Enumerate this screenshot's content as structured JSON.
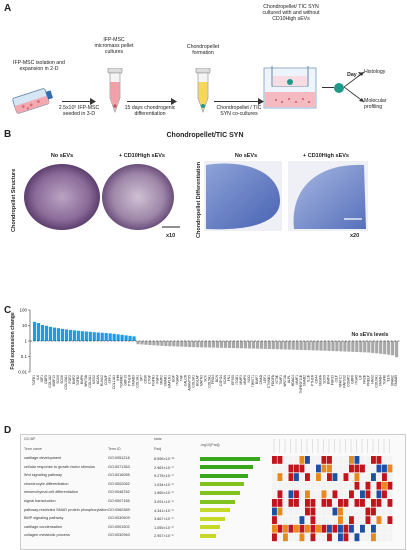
{
  "panels": {
    "a": "A",
    "b": "B",
    "c": "C",
    "d": "D"
  },
  "workflow": {
    "step1": "IFP-MSC isolation and expansion in 2-D",
    "step2_title": "IFP-MSC micromass pellet cultures",
    "step2_note": "2.5x10⁵ IFP-MSC seeded in 3-D",
    "step3_title": "Chondropellet formation",
    "step3_note": "15 days chondrogenic differentiation",
    "step4_title": "Chondropellet/ TIC SYN cultured with and without CD10High sEVs",
    "step4_note": "Chondropellet / TIC SYN co-cultures",
    "day": "Day 3",
    "out1": "Histology",
    "out2": "Molecular profiling"
  },
  "histology": {
    "title": "Chondropellet/TIC SYN",
    "left_label": "Chondropellet Structure",
    "right_label": "Chondropellet Differentiation",
    "col_no": "No sEVs",
    "col_plus": "+ CD10High  sEVs",
    "mag_left": "x10",
    "mag_right": "x20"
  },
  "chart_data": {
    "type": "bar",
    "ylabel": "Fold expression change",
    "yscale": "log",
    "ylim": [
      0.01,
      100
    ],
    "y_ticks": [
      "100",
      "10",
      "1",
      "0.1",
      "0.01"
    ],
    "reference_line": {
      "value": 1,
      "label": "No sEVs levels"
    },
    "colors": {
      "up": "#1e9be8",
      "down": "#a8a8a8"
    },
    "values": [
      17.2,
      14.5,
      10.8,
      9.6,
      8.2,
      7.3,
      6.7,
      6.1,
      5.6,
      5.2,
      4.9,
      4.6,
      4.3,
      4.1,
      3.9,
      3.7,
      3.55,
      3.4,
      3.25,
      3.1,
      2.9,
      2.7,
      2.5,
      2.3,
      2.15,
      2.0,
      0.62,
      0.6,
      0.57,
      0.55,
      0.53,
      0.51,
      0.49,
      0.47,
      0.46,
      0.45,
      0.44,
      0.43,
      0.42,
      0.41,
      0.4,
      0.395,
      0.39,
      0.385,
      0.38,
      0.375,
      0.37,
      0.365,
      0.36,
      0.355,
      0.35,
      0.345,
      0.34,
      0.335,
      0.33,
      0.325,
      0.32,
      0.315,
      0.31,
      0.305,
      0.3,
      0.295,
      0.29,
      0.285,
      0.28,
      0.275,
      0.27,
      0.265,
      0.26,
      0.255,
      0.25,
      0.245,
      0.24,
      0.235,
      0.23,
      0.225,
      0.22,
      0.215,
      0.21,
      0.205,
      0.2,
      0.195,
      0.19,
      0.185,
      0.18,
      0.17,
      0.16,
      0.15,
      0.14,
      0.13,
      0.12,
      0.09
    ],
    "n_up": 26,
    "tick_labels": [
      "TGFB1",
      "IL6",
      "IGF1",
      "GDF5",
      "COL1A2",
      "MMP13",
      "SOX9",
      "SOX6",
      "COL10A1",
      "FGF2",
      "BMP2",
      "TGFB2",
      "BMP6",
      "WNT5A",
      "COL2A1",
      "MSX2",
      "ACAN",
      "RUNX2",
      "COMP",
      "SPP1",
      "COL11A1",
      "IHH",
      "TGFBR2",
      "GDF10",
      "PTHLH",
      "SMAD3",
      "COL3A1",
      "SP7",
      "CD36",
      "CTGF",
      "FGFR1",
      "FGF4",
      "MMP2",
      "SMAD1",
      "HAPLN1",
      "EGF",
      "ITGAM",
      "TNF",
      "CALCR",
      "ADAMTS5",
      "COL9A1",
      "BGLAP",
      "MATN3",
      "SCX",
      "COL5A1",
      "PRG4",
      "DCN",
      "CSPG4",
      "VCAN",
      "FN1",
      "EP300",
      "ITGB1",
      "MMP3",
      "MMP9",
      "NOG",
      "TWIST1",
      "BMP7",
      "CHAD",
      "LEF1",
      "CTNNB1",
      "PDGFA",
      "NT5E",
      "TIMP1",
      "WNT3A",
      "ALPL",
      "HDAC4",
      "MMP1",
      "TNFRSF11B",
      "SMAD2",
      "IL1B",
      "PTH1R",
      "CD44",
      "VEGFA",
      "SOX5",
      "BMP4",
      "FGF23",
      "CILP",
      "NFATC1",
      "PAPSS2",
      "COMP2",
      "GDF6",
      "ITGA5",
      "LIF",
      "FRZB",
      "PRELP",
      "HAS2",
      "COL6A1",
      "SMAD4",
      "TGFBI",
      "ELN",
      "SPARC",
      "SMAD5"
    ]
  },
  "go_table": {
    "header_left": "GO:BP",
    "header_mid": "stats",
    "col_term": "Term name",
    "col_id": "Term ID",
    "col_p": "Padj",
    "col_bar": "-log10(Padj)",
    "rows": [
      {
        "term": "cartilage development",
        "id": "GO:0051216",
        "p": "8.596×10⁻¹¹",
        "bar": 1.0
      },
      {
        "term": "cellular response to growth factor stimulus",
        "id": "GO:0071363",
        "p": "2.963×10⁻⁹",
        "bar": 0.88
      },
      {
        "term": "Wnt signaling pathway",
        "id": "GO:0016055",
        "p": "9.278×10⁻⁹",
        "bar": 0.8
      },
      {
        "term": "chondrocyte differentiation",
        "id": "GO:0002062",
        "p": "1.034×10⁻⁸",
        "bar": 0.74
      },
      {
        "term": "mesenchymal cell differentiation",
        "id": "GO:0048762",
        "p": "1.565×10⁻⁸",
        "bar": 0.66
      },
      {
        "term": "signal transduction",
        "id": "GO:0007165",
        "p": "3.091×10⁻⁸",
        "bar": 0.58
      },
      {
        "term": "pathway-restricted SMAD protein phosphorylation",
        "id": "GO:0060389",
        "p": "4.341×10⁻⁸",
        "bar": 0.5
      },
      {
        "term": "BMP signaling pathway",
        "id": "GO:0030509",
        "p": "3.667×10⁻⁶",
        "bar": 0.42
      },
      {
        "term": "cartilage condensation",
        "id": "GO:0001502",
        "p": "1.055×10⁻⁵",
        "bar": 0.33
      },
      {
        "term": "collagen metabolic process",
        "id": "GO:0032963",
        "p": "2.957×10⁻⁵",
        "bar": 0.26
      }
    ]
  }
}
